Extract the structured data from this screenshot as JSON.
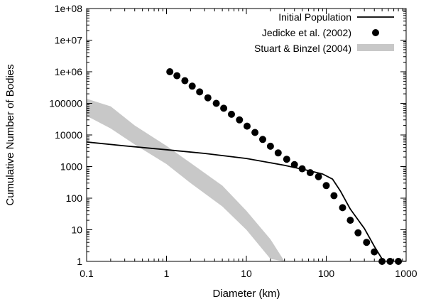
{
  "chart_data": {
    "type": "line",
    "title": "",
    "xlabel": "Diameter (km)",
    "ylabel": "Cumulative Number of Bodies",
    "xscale": "log",
    "yscale": "log",
    "xlim": [
      0.1,
      1000
    ],
    "ylim": [
      1,
      100000000
    ],
    "xticks": [
      {
        "value": 0.1,
        "label": "0.1"
      },
      {
        "value": 1,
        "label": "1"
      },
      {
        "value": 10,
        "label": "10"
      },
      {
        "value": 100,
        "label": "100"
      },
      {
        "value": 1000,
        "label": "1000"
      }
    ],
    "yticks": [
      {
        "value": 1,
        "label": "1"
      },
      {
        "value": 10,
        "label": "10"
      },
      {
        "value": 100,
        "label": "100"
      },
      {
        "value": 1000,
        "label": "1000"
      },
      {
        "value": 10000,
        "label": "10000"
      },
      {
        "value": 100000,
        "label": "100000"
      },
      {
        "value": 1000000,
        "label": "1e+06"
      },
      {
        "value": 10000000,
        "label": "1e+07"
      },
      {
        "value": 100000000,
        "label": "1e+08"
      }
    ],
    "legend_position": "top-right",
    "series": [
      {
        "name": "Initial Population",
        "style": "line",
        "color": "#000000",
        "x": [
          0.1,
          0.3,
          1,
          3,
          10,
          30,
          60,
          90,
          120,
          150,
          200,
          300,
          400,
          500,
          520,
          1000
        ],
        "y": [
          6000,
          4500,
          3400,
          2600,
          1800,
          1100,
          750,
          580,
          400,
          170,
          45,
          11,
          3,
          1.2,
          1,
          1
        ]
      },
      {
        "name": "Jedicke et al. (2002)",
        "style": "points",
        "color": "#000000",
        "x": [
          1.1,
          1.35,
          1.7,
          2.1,
          2.6,
          3.3,
          4.2,
          5.2,
          6.5,
          8.2,
          10.2,
          12.8,
          16,
          20,
          25,
          32,
          40,
          50,
          63,
          80,
          100,
          125,
          160,
          200,
          250,
          320,
          400,
          500,
          630,
          800
        ],
        "y": [
          1000000,
          750000,
          520000,
          350000,
          230000,
          150000,
          100000,
          70000,
          45000,
          30000,
          19000,
          12000,
          7200,
          4400,
          2700,
          1700,
          1150,
          850,
          640,
          480,
          250,
          120,
          50,
          20,
          8,
          4,
          2,
          1,
          1,
          1
        ]
      },
      {
        "name": "Stuart & Binzel (2004)",
        "style": "band",
        "color": "#c8c8c8",
        "x": [
          0.1,
          0.2,
          0.4,
          1,
          2,
          5,
          10,
          20,
          30
        ],
        "y_upper": [
          140000,
          80000,
          20000,
          4500,
          1300,
          250,
          40,
          5,
          1
        ],
        "y_lower": [
          40000,
          16000,
          5000,
          1200,
          300,
          55,
          10,
          1.2,
          1
        ]
      }
    ]
  }
}
